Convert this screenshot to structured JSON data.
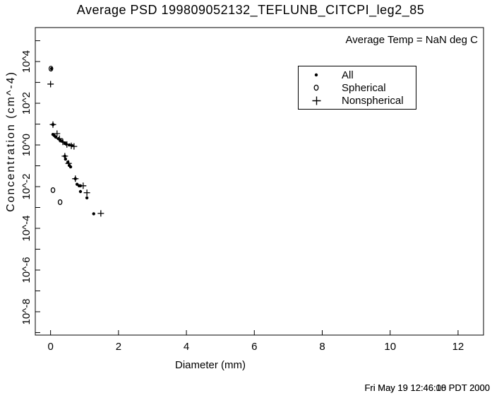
{
  "colors": {
    "fg": "#000000",
    "bg": "#ffffff"
  },
  "title": "Average PSD 199809052132_TEFLUNB_CITCPI_leg2_85",
  "annotation": "Average Temp = NaN deg C",
  "timestamp": {
    "line1": "Fri May 19 12:46:08 PDT 2000",
    "line2": "Fri May 19 12:46:10 PDT 2000"
  },
  "legend": {
    "items": [
      {
        "label": "All",
        "marker": "dot"
      },
      {
        "label": "Spherical",
        "marker": "circle"
      },
      {
        "label": "Nonspherical",
        "marker": "plus"
      }
    ]
  },
  "axes": {
    "x": {
      "label": "Diameter (mm)",
      "ticks": [
        0,
        2,
        4,
        6,
        8,
        10,
        12
      ],
      "min": -0.45,
      "max": 12.75
    },
    "y": {
      "label": "Concentration (cm^-4)",
      "scale": "log",
      "tick_labels": [
        "10^4",
        "10^2",
        "10^0",
        "10^-2",
        "10^-4",
        "10^-6",
        "10^-8"
      ],
      "labeled_exponents": [
        4,
        2,
        0,
        -2,
        -4,
        -6,
        -8
      ],
      "minor_exponents": [
        5,
        3,
        1,
        -1,
        -3,
        -5,
        -7,
        -9
      ],
      "log_min": -9.12,
      "log_max": 5.63
    }
  },
  "chart_data": {
    "type": "scatter",
    "title": "Average PSD 199809052132_TEFLUNB_CITCPI_leg2_85",
    "xlabel": "Diameter (mm)",
    "ylabel": "Concentration (cm^-4)",
    "annotation": "Average Temp = NaN deg C",
    "x_axis": {
      "min": -0.45,
      "max": 12.75,
      "ticks": [
        0,
        2,
        4,
        6,
        8,
        10,
        12
      ]
    },
    "y_axis": {
      "scale": "log",
      "labeled_exponents": [
        4,
        2,
        0,
        -2,
        -4,
        -6,
        -8
      ],
      "range_exponents": [
        -9.12,
        5.63
      ]
    },
    "legend_position": "upper-center",
    "grid": false,
    "series": [
      {
        "name": "All",
        "marker": "dot",
        "points": [
          [
            0.03,
            4600
          ],
          [
            0.07,
            9.5
          ],
          [
            0.07,
            3.2
          ],
          [
            0.11,
            2.8
          ],
          [
            0.15,
            2.4
          ],
          [
            0.23,
            2.0
          ],
          [
            0.28,
            1.7
          ],
          [
            0.34,
            1.5
          ],
          [
            0.42,
            1.25
          ],
          [
            0.46,
            1.1
          ],
          [
            0.55,
            1.0
          ],
          [
            0.63,
            0.93
          ],
          [
            0.42,
            0.29
          ],
          [
            0.44,
            0.21
          ],
          [
            0.51,
            0.15
          ],
          [
            0.55,
            0.105
          ],
          [
            0.59,
            0.089
          ],
          [
            0.73,
            0.024
          ],
          [
            0.78,
            0.013
          ],
          [
            0.84,
            0.011
          ],
          [
            0.88,
            0.011
          ],
          [
            0.88,
            0.0058
          ],
          [
            1.07,
            0.0029
          ],
          [
            1.27,
            0.0005
          ]
        ]
      },
      {
        "name": "Spherical",
        "marker": "circle",
        "points": [
          [
            0.01,
            4600
          ],
          [
            0.07,
            0.0068
          ],
          [
            0.28,
            0.0018
          ]
        ]
      },
      {
        "name": "Nonspherical",
        "marker": "plus",
        "points": [
          [
            0.0,
            830
          ],
          [
            0.07,
            9.5
          ],
          [
            0.19,
            3.5
          ],
          [
            0.26,
            2.0
          ],
          [
            0.36,
            1.4
          ],
          [
            0.48,
            1.05
          ],
          [
            0.61,
            0.91
          ],
          [
            0.69,
            0.85
          ],
          [
            0.42,
            0.29
          ],
          [
            0.53,
            0.13
          ],
          [
            0.73,
            0.024
          ],
          [
            0.96,
            0.011
          ],
          [
            1.07,
            0.0051
          ],
          [
            1.48,
            0.00052
          ]
        ]
      }
    ]
  }
}
